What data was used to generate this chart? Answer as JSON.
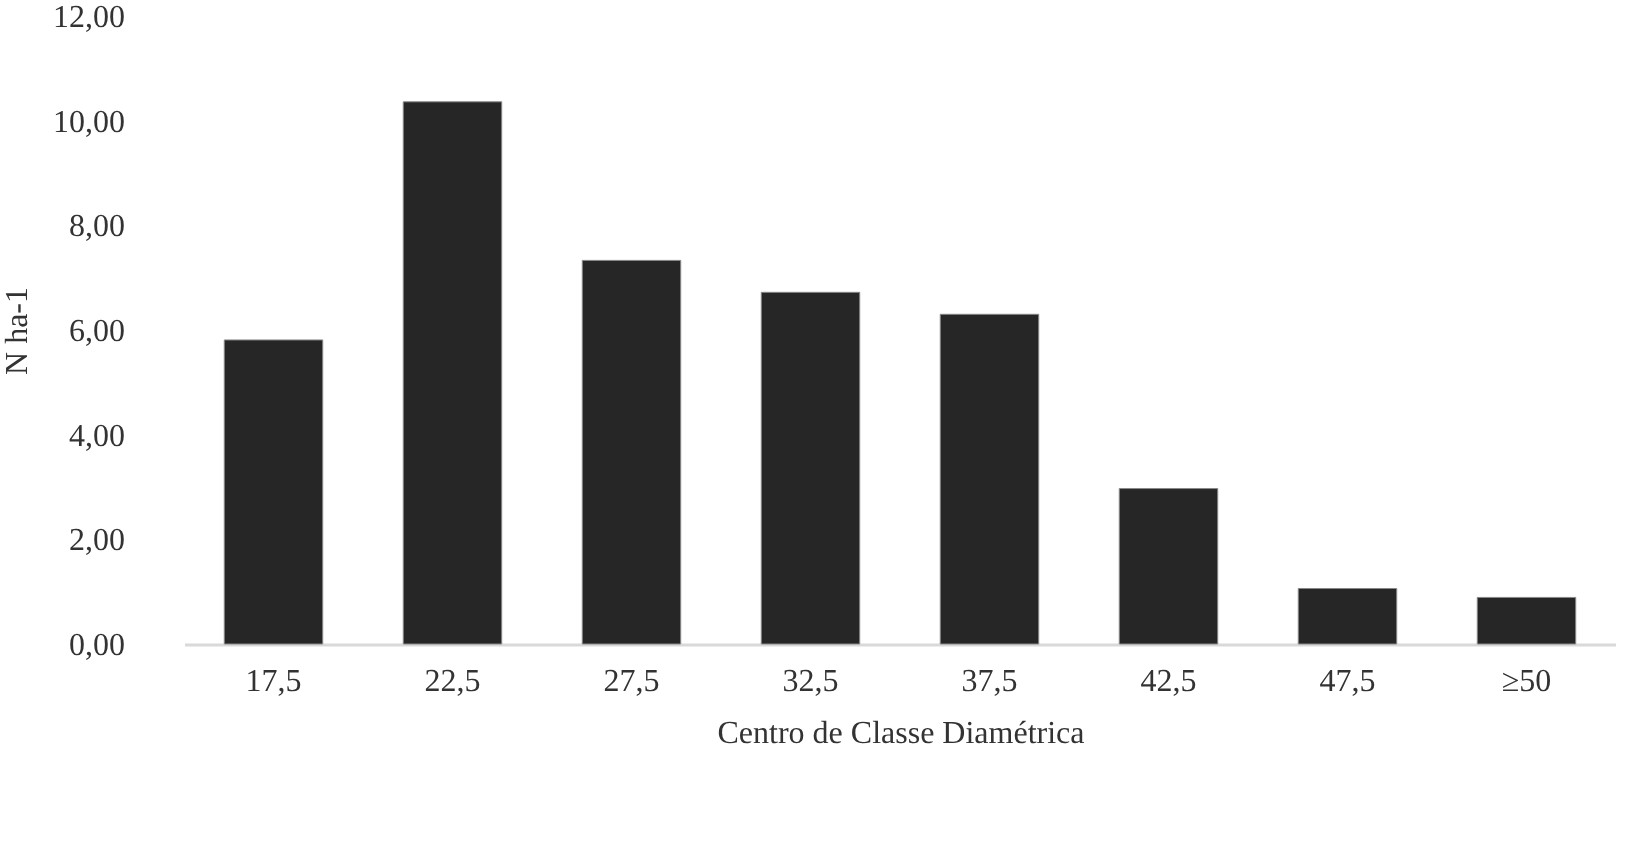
{
  "chart_data": {
    "type": "bar",
    "xlabel": "Centro de Classe Diamétrica",
    "ylabel": "N ha-1",
    "categories": [
      "17,5",
      "22,5",
      "27,5",
      "32,5",
      "37,5",
      "42,5",
      "47,5",
      "≥50"
    ],
    "values": [
      5.81,
      10.36,
      7.33,
      6.72,
      6.3,
      2.97,
      1.06,
      0.89
    ],
    "color": "#262626",
    "ylim": [
      0,
      12
    ],
    "yticks": [
      {
        "value": 0,
        "label": "0,00"
      },
      {
        "value": 2,
        "label": "2,00"
      },
      {
        "value": 4,
        "label": "4,00"
      },
      {
        "value": 6,
        "label": "6,00"
      },
      {
        "value": 8,
        "label": "8,00"
      },
      {
        "value": 10,
        "label": "10,00"
      },
      {
        "value": 12,
        "label": "12,00"
      }
    ],
    "grid": false
  }
}
